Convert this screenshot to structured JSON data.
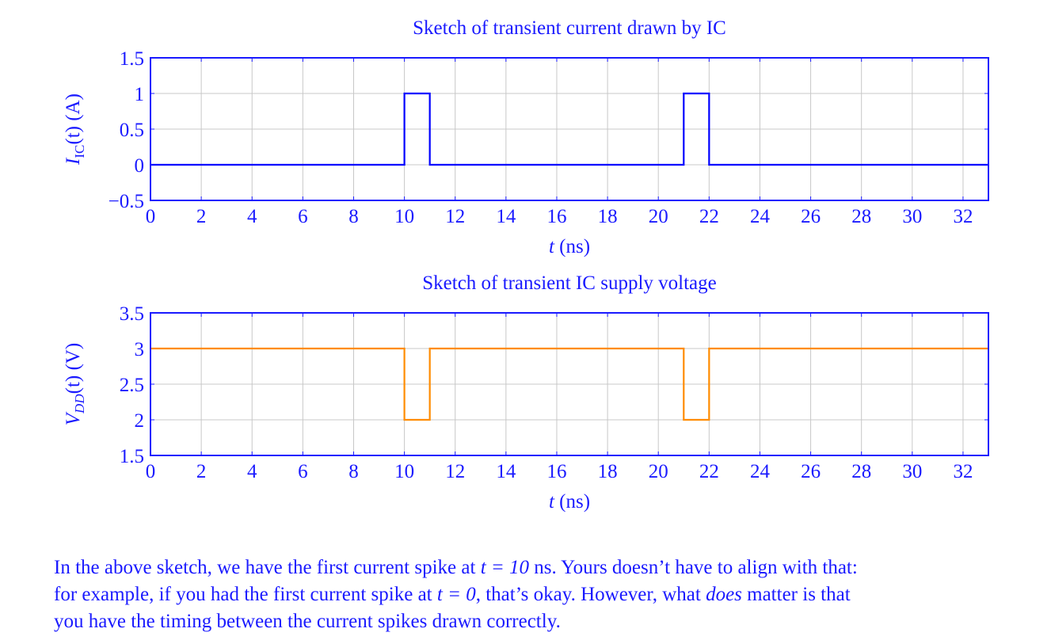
{
  "chart_data": [
    {
      "type": "line",
      "title": "Sketch of transient current drawn by IC",
      "xlabel_var": "t",
      "xlabel_unit": " (ns)",
      "ylabel_var": "I",
      "ylabel_sub": "IC",
      "ylabel_arg": "(t)",
      "ylabel_unit": " (A)",
      "xlim": [
        0,
        33
      ],
      "ylim": [
        -0.5,
        1.5
      ],
      "xticks": [
        0,
        2,
        4,
        6,
        8,
        10,
        12,
        14,
        16,
        18,
        20,
        22,
        24,
        26,
        28,
        30,
        32
      ],
      "yticks": [
        -0.5,
        0,
        0.5,
        1,
        1.5
      ],
      "ytick_labels": [
        "−0.5",
        "0",
        "0.5",
        "1",
        "1.5"
      ],
      "grid": true,
      "step": true,
      "color": "#0000ff",
      "series": [
        {
          "x": [
            0,
            10,
            10,
            11,
            11,
            21,
            21,
            22,
            22,
            33
          ],
          "y": [
            0,
            0,
            1,
            1,
            0,
            0,
            1,
            1,
            0,
            0
          ]
        }
      ]
    },
    {
      "type": "line",
      "title": "Sketch of transient IC supply voltage",
      "xlabel_var": "t",
      "xlabel_unit": " (ns)",
      "ylabel_var": "V",
      "ylabel_sub": "DD",
      "ylabel_arg": "(t)",
      "ylabel_unit": " (V)",
      "xlim": [
        0,
        33
      ],
      "ylim": [
        1.5,
        3.5
      ],
      "xticks": [
        0,
        2,
        4,
        6,
        8,
        10,
        12,
        14,
        16,
        18,
        20,
        22,
        24,
        26,
        28,
        30,
        32
      ],
      "yticks": [
        1.5,
        2,
        2.5,
        3,
        3.5
      ],
      "ytick_labels": [
        "1.5",
        "2",
        "2.5",
        "3",
        "3.5"
      ],
      "grid": true,
      "step": true,
      "color": "#ff8c00",
      "series": [
        {
          "x": [
            0,
            10,
            10,
            11,
            11,
            21,
            21,
            22,
            22,
            33
          ],
          "y": [
            3,
            3,
            2,
            2,
            3,
            3,
            2,
            2,
            3,
            3
          ]
        }
      ]
    }
  ],
  "caption": {
    "line1_a": "In the above sketch, we have the first current spike at ",
    "line1_math": "t = 10",
    "line1_unit": " ns",
    "line1_b": ". Yours doesn’t have to align with that:",
    "line2_a": "for example, if you had the first current spike at ",
    "line2_math": "t = 0",
    "line2_b": ", that’s okay. However, what ",
    "line2_em": "does",
    "line2_c": " matter is that",
    "line3": "you have the timing between the current spikes drawn correctly."
  },
  "colors": {
    "axis": "#1a1aff",
    "grid": "#c8c8c8",
    "current": "#0000ff",
    "voltage": "#ff8c00"
  }
}
